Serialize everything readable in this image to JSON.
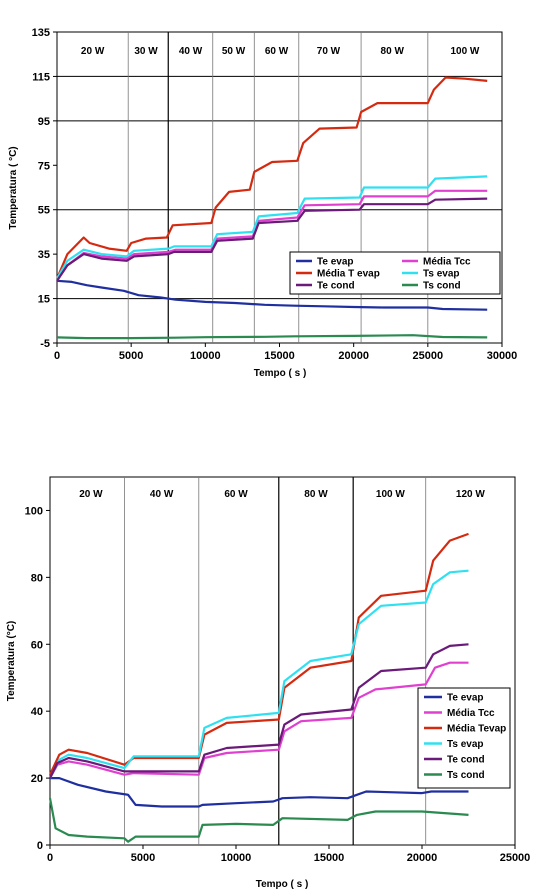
{
  "chart_data": [
    {
      "type": "line",
      "xlabel": "Tempo ( s )",
      "ylabel": "Temperatura ( °C)",
      "xlim": [
        0,
        30000
      ],
      "ylim": [
        -5,
        135
      ],
      "x_ticks": [
        0,
        5000,
        10000,
        15000,
        20000,
        25000,
        30000
      ],
      "y_ticks": [
        -5,
        15,
        35,
        55,
        75,
        95,
        115,
        135
      ],
      "hgrid": [
        15,
        55,
        95,
        115
      ],
      "region_labels": [
        {
          "text": "20 W",
          "x": 2400
        },
        {
          "text": "30 W",
          "x": 6000
        },
        {
          "text": "40 W",
          "x": 9000
        },
        {
          "text": "50 W",
          "x": 11900
        },
        {
          "text": "60 W",
          "x": 14800
        },
        {
          "text": "70 W",
          "x": 18300
        },
        {
          "text": "80 W",
          "x": 22600
        },
        {
          "text": "100 W",
          "x": 27500
        }
      ],
      "dividers": [
        {
          "x": 4800,
          "major": false
        },
        {
          "x": 7500,
          "major": true
        },
        {
          "x": 10500,
          "major": false
        },
        {
          "x": 13300,
          "major": false
        },
        {
          "x": 16300,
          "major": false
        },
        {
          "x": 20500,
          "major": false
        },
        {
          "x": 25000,
          "major": false
        }
      ],
      "legend": {
        "position": "center-right",
        "columns": 2,
        "order": [
          "Te evap",
          "Média Tcc",
          "Média T evap",
          "Ts evap",
          "Te cond",
          "Ts cond"
        ]
      },
      "series": [
        {
          "name": "Te evap",
          "color": "#1f2fa0",
          "points": [
            [
              0,
              23
            ],
            [
              1000,
              22.5
            ],
            [
              2000,
              21
            ],
            [
              3000,
              20
            ],
            [
              4500,
              18.5
            ],
            [
              5500,
              16.5
            ],
            [
              7000,
              15.5
            ],
            [
              8000,
              14.5
            ],
            [
              10000,
              13.5
            ],
            [
              12000,
              13
            ],
            [
              14000,
              12.2
            ],
            [
              16000,
              11.8
            ],
            [
              18000,
              11.5
            ],
            [
              20000,
              11.2
            ],
            [
              22000,
              11
            ],
            [
              25000,
              11
            ],
            [
              26000,
              10.3
            ],
            [
              29000,
              10
            ]
          ]
        },
        {
          "name": "Média Tcc",
          "color": "#e040d0",
          "points": [
            [
              0,
              23
            ],
            [
              700,
              30
            ],
            [
              1800,
              35.5
            ],
            [
              3000,
              34
            ],
            [
              4700,
              33
            ],
            [
              5200,
              35
            ],
            [
              7500,
              36
            ],
            [
              8000,
              37
            ],
            [
              10400,
              37
            ],
            [
              10800,
              42
            ],
            [
              13200,
              43
            ],
            [
              13600,
              50
            ],
            [
              16200,
              51.5
            ],
            [
              16700,
              57
            ],
            [
              20400,
              57.5
            ],
            [
              20700,
              61
            ],
            [
              25000,
              61
            ],
            [
              25500,
              63.5
            ],
            [
              29000,
              63.5
            ]
          ]
        },
        {
          "name": "Média T evap",
          "color": "#d42a10",
          "points": [
            [
              0,
              24
            ],
            [
              700,
              35
            ],
            [
              1800,
              42.5
            ],
            [
              2200,
              40
            ],
            [
              3500,
              37.5
            ],
            [
              4700,
              36.5
            ],
            [
              5000,
              40
            ],
            [
              6000,
              42
            ],
            [
              7400,
              42.5
            ],
            [
              7800,
              48
            ],
            [
              10400,
              49
            ],
            [
              10700,
              56
            ],
            [
              11600,
              63
            ],
            [
              13000,
              64
            ],
            [
              13300,
              72
            ],
            [
              14500,
              76.5
            ],
            [
              16200,
              77
            ],
            [
              16600,
              85
            ],
            [
              17700,
              91.5
            ],
            [
              20200,
              92
            ],
            [
              20500,
              99
            ],
            [
              21600,
              103
            ],
            [
              25000,
              103
            ],
            [
              25400,
              109
            ],
            [
              26200,
              114.5
            ],
            [
              27500,
              114
            ],
            [
              29000,
              113
            ]
          ]
        },
        {
          "name": "Ts evap",
          "color": "#30e0f0",
          "points": [
            [
              0,
              24
            ],
            [
              700,
              32
            ],
            [
              1800,
              37
            ],
            [
              3000,
              35
            ],
            [
              4700,
              34
            ],
            [
              5200,
              36.5
            ],
            [
              7500,
              37.5
            ],
            [
              7900,
              38.5
            ],
            [
              10400,
              38.5
            ],
            [
              10800,
              44
            ],
            [
              13200,
              45
            ],
            [
              13600,
              52
            ],
            [
              16200,
              53.5
            ],
            [
              16700,
              60
            ],
            [
              20400,
              60.5
            ],
            [
              20700,
              65
            ],
            [
              25000,
              65
            ],
            [
              25500,
              69
            ],
            [
              29000,
              70
            ]
          ]
        },
        {
          "name": "Te cond",
          "color": "#6a1a78",
          "points": [
            [
              0,
              23
            ],
            [
              700,
              30
            ],
            [
              1800,
              35
            ],
            [
              3000,
              33
            ],
            [
              4700,
              32
            ],
            [
              5200,
              34
            ],
            [
              7500,
              35
            ],
            [
              7900,
              36
            ],
            [
              10400,
              36
            ],
            [
              10800,
              41
            ],
            [
              13200,
              42
            ],
            [
              13600,
              49
            ],
            [
              16200,
              50
            ],
            [
              16700,
              54.5
            ],
            [
              20400,
              55
            ],
            [
              20700,
              57.5
            ],
            [
              25000,
              57.5
            ],
            [
              25500,
              59.5
            ],
            [
              29000,
              60
            ]
          ]
        },
        {
          "name": "Ts cond",
          "color": "#2a8a50",
          "points": [
            [
              0,
              -2.5
            ],
            [
              2000,
              -2.8
            ],
            [
              5000,
              -2.8
            ],
            [
              8000,
              -2.6
            ],
            [
              10000,
              -2.4
            ],
            [
              12000,
              -2.3
            ],
            [
              14000,
              -2.2
            ],
            [
              16000,
              -2
            ],
            [
              20000,
              -1.8
            ],
            [
              24000,
              -1.5
            ],
            [
              26000,
              -2.3
            ],
            [
              29000,
              -2.5
            ]
          ]
        }
      ]
    },
    {
      "type": "line",
      "xlabel": "Tempo ( s )",
      "ylabel": "Temperatura (°C)",
      "xlim": [
        0,
        25000
      ],
      "ylim": [
        0,
        110
      ],
      "x_ticks": [
        0,
        5000,
        10000,
        15000,
        20000,
        25000
      ],
      "y_ticks": [
        0,
        20,
        40,
        60,
        80,
        100
      ],
      "hgrid": [],
      "region_labels": [
        {
          "text": "20 W",
          "x": 2200
        },
        {
          "text": "40 W",
          "x": 6000
        },
        {
          "text": "60 W",
          "x": 10000
        },
        {
          "text": "80 W",
          "x": 14300
        },
        {
          "text": "100 W",
          "x": 18300
        },
        {
          "text": "120 W",
          "x": 22600
        }
      ],
      "dividers": [
        {
          "x": 4000,
          "major": false
        },
        {
          "x": 8000,
          "major": false
        },
        {
          "x": 12300,
          "major": true
        },
        {
          "x": 16300,
          "major": true
        },
        {
          "x": 20200,
          "major": false
        }
      ],
      "legend": {
        "position": "bottom-right",
        "columns": 1,
        "order": [
          "Te evap",
          "Média Tcc",
          "Média Tevap",
          "Ts evap",
          "Te cond",
          "Ts cond"
        ]
      },
      "series": [
        {
          "name": "Te evap",
          "color": "#1f2fa0",
          "points": [
            [
              0,
              20
            ],
            [
              500,
              20
            ],
            [
              1500,
              18
            ],
            [
              3000,
              16
            ],
            [
              4200,
              15
            ],
            [
              4600,
              12
            ],
            [
              6000,
              11.5
            ],
            [
              8000,
              11.5
            ],
            [
              8200,
              12
            ],
            [
              10000,
              12.5
            ],
            [
              12000,
              13
            ],
            [
              12500,
              14
            ],
            [
              14000,
              14.3
            ],
            [
              16000,
              14
            ],
            [
              16500,
              15
            ],
            [
              17000,
              16
            ],
            [
              20000,
              15.5
            ],
            [
              20500,
              16
            ],
            [
              22500,
              16
            ]
          ]
        },
        {
          "name": "Média Tcc",
          "color": "#e040d0",
          "points": [
            [
              0,
              20
            ],
            [
              400,
              24
            ],
            [
              1000,
              25
            ],
            [
              2000,
              24
            ],
            [
              4000,
              21
            ],
            [
              4500,
              21.5
            ],
            [
              8000,
              21
            ],
            [
              8300,
              26
            ],
            [
              9500,
              27.5
            ],
            [
              12300,
              28.5
            ],
            [
              12600,
              34
            ],
            [
              13500,
              37
            ],
            [
              16200,
              38
            ],
            [
              16600,
              44
            ],
            [
              17500,
              46.5
            ],
            [
              20200,
              48
            ],
            [
              20700,
              53
            ],
            [
              21500,
              54.5
            ],
            [
              22500,
              54.5
            ]
          ]
        },
        {
          "name": "Média Tevap",
          "color": "#d42a10",
          "points": [
            [
              0,
              21
            ],
            [
              500,
              27
            ],
            [
              1000,
              28.5
            ],
            [
              2000,
              27.5
            ],
            [
              4000,
              24
            ],
            [
              4500,
              26
            ],
            [
              8000,
              26
            ],
            [
              8300,
              33
            ],
            [
              9500,
              36.5
            ],
            [
              12300,
              37.5
            ],
            [
              12600,
              47
            ],
            [
              14000,
              53
            ],
            [
              16200,
              55
            ],
            [
              16600,
              68
            ],
            [
              17800,
              74.5
            ],
            [
              20200,
              76
            ],
            [
              20600,
              85
            ],
            [
              21500,
              91
            ],
            [
              22500,
              93
            ]
          ]
        },
        {
          "name": "Ts evap",
          "color": "#30e0f0",
          "points": [
            [
              0,
              20
            ],
            [
              500,
              25.5
            ],
            [
              1000,
              27
            ],
            [
              2000,
              26
            ],
            [
              4000,
              23
            ],
            [
              4500,
              26.5
            ],
            [
              8000,
              26.5
            ],
            [
              8300,
              35
            ],
            [
              9500,
              38
            ],
            [
              12300,
              39.5
            ],
            [
              12600,
              49
            ],
            [
              14000,
              55
            ],
            [
              16200,
              57
            ],
            [
              16600,
              66
            ],
            [
              17800,
              71.5
            ],
            [
              20200,
              72.5
            ],
            [
              20600,
              78
            ],
            [
              21500,
              81.5
            ],
            [
              22500,
              82
            ]
          ]
        },
        {
          "name": "Te cond",
          "color": "#6a1a78",
          "points": [
            [
              0,
              20
            ],
            [
              400,
              24.5
            ],
            [
              1000,
              26
            ],
            [
              2000,
              25
            ],
            [
              4000,
              22
            ],
            [
              4500,
              22
            ],
            [
              8000,
              22
            ],
            [
              8300,
              27
            ],
            [
              9500,
              29
            ],
            [
              12300,
              30
            ],
            [
              12600,
              36
            ],
            [
              13500,
              39
            ],
            [
              16200,
              40.5
            ],
            [
              16600,
              47
            ],
            [
              17800,
              52
            ],
            [
              20200,
              53
            ],
            [
              20600,
              57
            ],
            [
              21500,
              59.5
            ],
            [
              22500,
              60
            ]
          ]
        },
        {
          "name": "Ts cond",
          "color": "#2a8a50",
          "points": [
            [
              0,
              14
            ],
            [
              300,
              5
            ],
            [
              1000,
              3
            ],
            [
              2000,
              2.5
            ],
            [
              4000,
              2
            ],
            [
              4200,
              1
            ],
            [
              4600,
              2.5
            ],
            [
              8000,
              2.5
            ],
            [
              8200,
              6
            ],
            [
              10000,
              6.3
            ],
            [
              12000,
              6
            ],
            [
              12500,
              8
            ],
            [
              16000,
              7.5
            ],
            [
              16500,
              9
            ],
            [
              17500,
              10
            ],
            [
              20000,
              10
            ],
            [
              22500,
              9
            ]
          ]
        }
      ]
    }
  ]
}
